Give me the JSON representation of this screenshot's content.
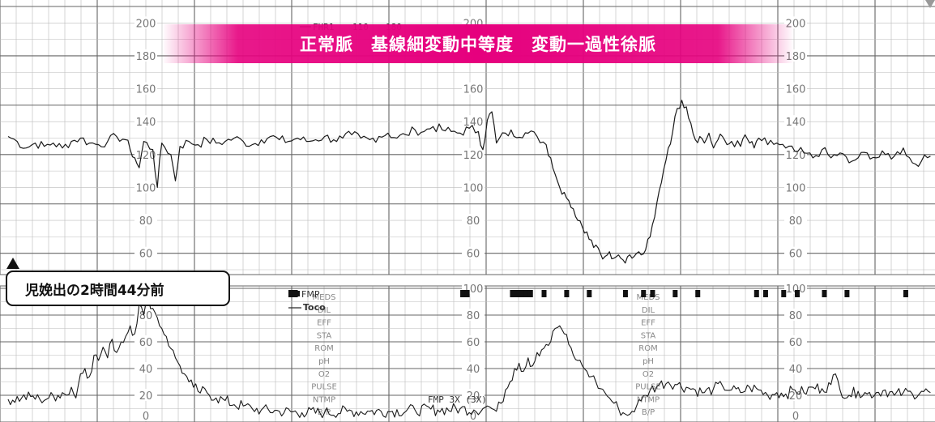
{
  "banner": {
    "text": "正常脈　基線細変動中等度　変動一過性徐脈",
    "color": "#e6007e"
  },
  "time_label": {
    "text": "児娩出の2時間44分前"
  },
  "chart_data": [
    {
      "type": "line",
      "panel": "upper",
      "series": [
        {
          "name": "FHR1",
          "values": [
            [
              0,
              131
            ],
            [
              2,
              128
            ],
            [
              4,
              124
            ],
            [
              6,
              127
            ],
            [
              8,
              125
            ],
            [
              10,
              127
            ],
            [
              12,
              124
            ],
            [
              14,
              128
            ],
            [
              16,
              130
            ],
            [
              18,
              127
            ],
            [
              20,
              126
            ],
            [
              22,
              128
            ],
            [
              24,
              131
            ],
            [
              26,
              129
            ],
            [
              27,
              123
            ],
            [
              28,
              118
            ],
            [
              29,
              112
            ],
            [
              30,
              128
            ],
            [
              32,
              123
            ],
            [
              33,
              100
            ],
            [
              34,
              127
            ],
            [
              36,
              120
            ],
            [
              37,
              104
            ],
            [
              38,
              125
            ],
            [
              40,
              128
            ],
            [
              42,
              126
            ],
            [
              44,
              129
            ],
            [
              46,
              127
            ],
            [
              48,
              128
            ],
            [
              50,
              130
            ],
            [
              52,
              128
            ],
            [
              54,
              126
            ],
            [
              56,
              129
            ],
            [
              58,
              131
            ],
            [
              60,
              129
            ],
            [
              62,
              128
            ],
            [
              64,
              130
            ],
            [
              66,
              128
            ],
            [
              68,
              129
            ],
            [
              70,
              131
            ],
            [
              72,
              129
            ],
            [
              74,
              130
            ],
            [
              76,
              132
            ],
            [
              78,
              130
            ],
            [
              80,
              129
            ],
            [
              82,
              131
            ],
            [
              84,
              133
            ],
            [
              86,
              130
            ],
            [
              88,
              132
            ],
            [
              90,
              135
            ],
            [
              92,
              134
            ],
            [
              94,
              137
            ],
            [
              96,
              135
            ],
            [
              98,
              134
            ],
            [
              100,
              133
            ],
            [
              102,
              136
            ],
            [
              104,
              134
            ],
            [
              105,
              123
            ],
            [
              106,
              141
            ],
            [
              107,
              146
            ],
            [
              108,
              127
            ],
            [
              110,
              133
            ],
            [
              115,
              133
            ],
            [
              117,
              131
            ],
            [
              119,
              126
            ],
            [
              120,
              118
            ],
            [
              121,
              108
            ],
            [
              122,
              100
            ],
            [
              123,
              97
            ],
            [
              124,
              92
            ],
            [
              125,
              87
            ],
            [
              126,
              80
            ],
            [
              127,
              76
            ],
            [
              128,
              73
            ],
            [
              129,
              68
            ],
            [
              130,
              65
            ],
            [
              131,
              60
            ],
            [
              132,
              58
            ],
            [
              133,
              61
            ],
            [
              134,
              57
            ],
            [
              135,
              59
            ],
            [
              136,
              56
            ],
            [
              137,
              58
            ],
            [
              138,
              57
            ],
            [
              139,
              60
            ],
            [
              140,
              59
            ],
            [
              141,
              62
            ],
            [
              142,
              70
            ],
            [
              143,
              82
            ],
            [
              144,
              98
            ],
            [
              145,
              111
            ],
            [
              146,
              124
            ],
            [
              147,
              134
            ],
            [
              148,
              148
            ],
            [
              149,
              153
            ],
            [
              150,
              149
            ],
            [
              151,
              139
            ],
            [
              152,
              129
            ],
            [
              153,
              131
            ],
            [
              154,
              127
            ],
            [
              155,
              133
            ],
            [
              156,
              124
            ],
            [
              157,
              129
            ],
            [
              158,
              131
            ],
            [
              159,
              126
            ],
            [
              160,
              128
            ],
            [
              162,
              125
            ],
            [
              163,
              132
            ],
            [
              164,
              127
            ],
            [
              165,
              124
            ],
            [
              166,
              130
            ],
            [
              168,
              126
            ],
            [
              170,
              127
            ],
            [
              172,
              124
            ],
            [
              174,
              122
            ],
            [
              176,
              121
            ],
            [
              178,
              118
            ],
            [
              180,
              123
            ],
            [
              182,
              118
            ],
            [
              184,
              121
            ],
            [
              186,
              115
            ],
            [
              188,
              118
            ],
            [
              190,
              121
            ],
            [
              192,
              118
            ],
            [
              194,
              120
            ],
            [
              196,
              119
            ],
            [
              198,
              124
            ],
            [
              200,
              115
            ],
            [
              202,
              116
            ],
            [
              204,
              119
            ]
          ]
        }
      ],
      "xlim": [
        0,
        205
      ],
      "ylim": [
        50,
        210
      ],
      "tick_labels": [
        "200",
        "180",
        "160",
        "140",
        "120",
        "100",
        "80",
        "60"
      ]
    },
    {
      "type": "line",
      "panel": "lower",
      "series": [
        {
          "name": "Toco",
          "values": [
            [
              0,
              17
            ],
            [
              3,
              18
            ],
            [
              5,
              19
            ],
            [
              7,
              17
            ],
            [
              9,
              18
            ],
            [
              11,
              20
            ],
            [
              12,
              22
            ],
            [
              13,
              20
            ],
            [
              14,
              26
            ],
            [
              15,
              18
            ],
            [
              16,
              36
            ],
            [
              17,
              40
            ],
            [
              18,
              34
            ],
            [
              19,
              50
            ],
            [
              20,
              46
            ],
            [
              21,
              56
            ],
            [
              22,
              48
            ],
            [
              23,
              62
            ],
            [
              24,
              52
            ],
            [
              25,
              60
            ],
            [
              26,
              64
            ],
            [
              27,
              72
            ],
            [
              28,
              66
            ],
            [
              29,
              88
            ],
            [
              30,
              80
            ],
            [
              31,
              93
            ],
            [
              32,
              85
            ],
            [
              33,
              78
            ],
            [
              34,
              70
            ],
            [
              35,
              64
            ],
            [
              36,
              55
            ],
            [
              37,
              48
            ],
            [
              38,
              42
            ],
            [
              39,
              36
            ],
            [
              40,
              30
            ],
            [
              41,
              26
            ],
            [
              42,
              23
            ],
            [
              44,
              22
            ],
            [
              46,
              18
            ],
            [
              48,
              16
            ],
            [
              50,
              13
            ],
            [
              52,
              12
            ],
            [
              54,
              10
            ],
            [
              56,
              9
            ],
            [
              60,
              8
            ],
            [
              65,
              7
            ],
            [
              70,
              7
            ],
            [
              75,
              8
            ],
            [
              80,
              8
            ],
            [
              85,
              8
            ],
            [
              90,
              9
            ],
            [
              95,
              9
            ],
            [
              100,
              10
            ],
            [
              103,
              9
            ],
            [
              105,
              10
            ],
            [
              106,
              12
            ],
            [
              107,
              10
            ],
            [
              108,
              8
            ],
            [
              109,
              14
            ],
            [
              110,
              24
            ],
            [
              111,
              30
            ],
            [
              112,
              40
            ],
            [
              113,
              44
            ],
            [
              114,
              38
            ],
            [
              115,
              48
            ],
            [
              116,
              42
            ],
            [
              117,
              52
            ],
            [
              118,
              54
            ],
            [
              119,
              58
            ],
            [
              120,
              60
            ],
            [
              121,
              70
            ],
            [
              122,
              72
            ],
            [
              123,
              66
            ],
            [
              124,
              58
            ],
            [
              125,
              50
            ],
            [
              126,
              46
            ],
            [
              127,
              42
            ],
            [
              128,
              38
            ],
            [
              129,
              34
            ],
            [
              130,
              30
            ],
            [
              131,
              25
            ],
            [
              132,
              22
            ],
            [
              133,
              18
            ],
            [
              134,
              14
            ],
            [
              135,
              10
            ],
            [
              136,
              7
            ],
            [
              137,
              5
            ],
            [
              138,
              8
            ],
            [
              139,
              12
            ],
            [
              140,
              16
            ],
            [
              141,
              20
            ],
            [
              142,
              24
            ],
            [
              144,
              28
            ],
            [
              146,
              30
            ],
            [
              148,
              28
            ],
            [
              150,
              26
            ],
            [
              152,
              24
            ],
            [
              154,
              22
            ],
            [
              156,
              25
            ],
            [
              158,
              27
            ],
            [
              160,
              24
            ],
            [
              162,
              22
            ],
            [
              164,
              26
            ],
            [
              166,
              24
            ],
            [
              168,
              20
            ],
            [
              170,
              22
            ],
            [
              172,
              21
            ],
            [
              174,
              24
            ],
            [
              176,
              22
            ],
            [
              178,
              26
            ],
            [
              180,
              25
            ],
            [
              182,
              28
            ],
            [
              183,
              36
            ],
            [
              184,
              24
            ],
            [
              186,
              20
            ],
            [
              188,
              23
            ],
            [
              190,
              21
            ],
            [
              192,
              22
            ],
            [
              194,
              24
            ],
            [
              196,
              20
            ],
            [
              198,
              22
            ],
            [
              200,
              21
            ],
            [
              202,
              23
            ],
            [
              204,
              22
            ]
          ]
        }
      ],
      "xlim": [
        0,
        205
      ],
      "ylim": [
        0,
        100
      ],
      "tick_labels": [
        "100",
        "80",
        "60",
        "40",
        "20",
        "0"
      ]
    }
  ],
  "legend": {
    "fhr_text": "FHR1",
    "fhr_scale": "110",
    "fhr_scale2": "180",
    "fmp_text": "FMP",
    "toco_text": "Toco",
    "fmp_note": "FMP 3X (3X)",
    "fmp_marks": [
      62,
      63,
      100,
      101,
      111,
      112,
      113,
      114,
      115,
      118,
      123,
      128,
      136,
      140,
      142,
      147,
      152,
      165,
      167,
      171,
      174,
      180,
      185,
      198
    ]
  },
  "side_labels": [
    "MEDS",
    "DIL",
    "EFF",
    "STA",
    "ROM",
    "pH",
    "O2",
    "PULSE",
    "NTMP",
    "B/P"
  ]
}
